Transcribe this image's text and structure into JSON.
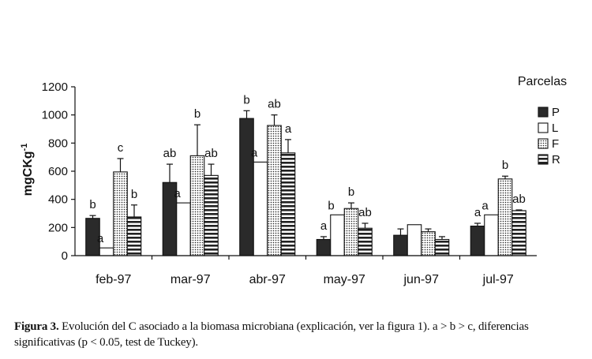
{
  "chart_data": {
    "type": "bar",
    "ylabel": "mgCKg-1",
    "ylim": [
      0,
      1200
    ],
    "yticks": [
      0,
      200,
      400,
      600,
      800,
      1000,
      1200
    ],
    "categories": [
      "feb-97",
      "mar-97",
      "abr-97",
      "may-97",
      "jun-97",
      "jul-97"
    ],
    "legend_title": "Parcelas",
    "legend_position": "right",
    "series": [
      {
        "name": "P",
        "pattern": "solid-dark",
        "values": [
          265,
          520,
          975,
          115,
          145,
          210
        ],
        "errors": [
          20,
          130,
          55,
          20,
          45,
          20
        ],
        "labels": [
          "b",
          "ab",
          "b",
          "a",
          "",
          "a"
        ]
      },
      {
        "name": "L",
        "pattern": "white",
        "values": [
          55,
          375,
          665,
          290,
          220,
          290
        ],
        "errors": [
          0,
          0,
          0,
          0,
          0,
          0
        ],
        "labels": [
          "a",
          "a",
          "a",
          "b",
          "",
          "a"
        ]
      },
      {
        "name": "F",
        "pattern": "dotted",
        "values": [
          595,
          710,
          925,
          335,
          170,
          545
        ],
        "errors": [
          95,
          220,
          75,
          40,
          20,
          20
        ],
        "labels": [
          "c",
          "b",
          "ab",
          "b",
          "",
          "b"
        ]
      },
      {
        "name": "R",
        "pattern": "horizontal-stripes",
        "values": [
          275,
          570,
          730,
          195,
          115,
          320
        ],
        "errors": [
          85,
          80,
          95,
          35,
          20,
          5
        ],
        "labels": [
          "b",
          "ab",
          "a",
          "ab",
          "",
          "ab"
        ]
      }
    ],
    "colors": {
      "dark": "#2a2a2a",
      "line": "#111111",
      "background": "#ffffff"
    }
  },
  "caption": {
    "label": "Figura 3.",
    "text": " Evolución del C asociado a la biomasa microbiana (explicación, ver la figura 1). a > b > c, diferencias significativas (p < 0.05, test de Tuckey)."
  }
}
